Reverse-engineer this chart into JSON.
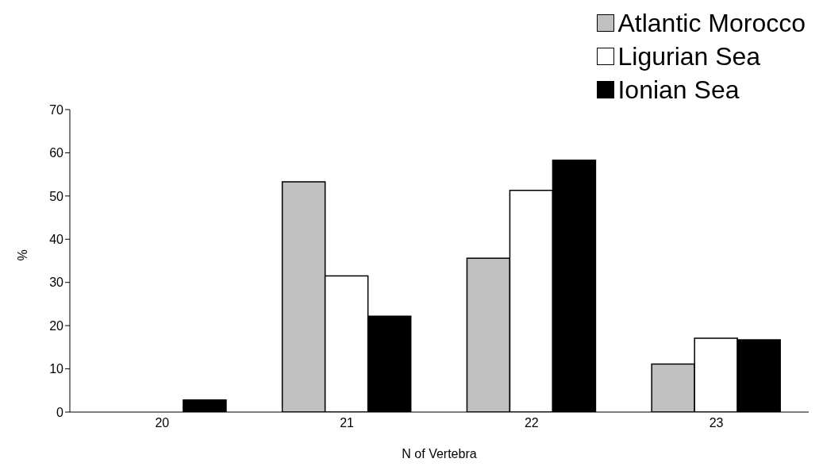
{
  "chart_data": {
    "type": "bar",
    "xlabel": "N of Vertebra",
    "ylabel": "%",
    "categories": [
      "20",
      "21",
      "22",
      "23"
    ],
    "series": [
      {
        "name": "Atlantic Morocco",
        "color": "#c0c0c0",
        "values": [
          0,
          53.3,
          35.6,
          11.1
        ]
      },
      {
        "name": "Ligurian Sea",
        "color": "#ffffff",
        "values": [
          0,
          31.5,
          51.3,
          17.1
        ]
      },
      {
        "name": "Ionian Sea",
        "color": "#000000",
        "values": [
          2.8,
          22.2,
          58.3,
          16.7
        ]
      }
    ],
    "ylim": [
      0,
      70
    ],
    "yticks": [
      0,
      10,
      20,
      30,
      40,
      50,
      60,
      70
    ],
    "grid": false,
    "legend": "top right"
  }
}
